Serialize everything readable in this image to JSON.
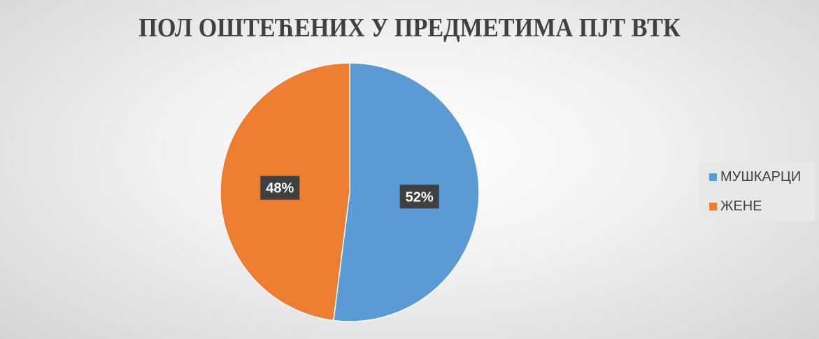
{
  "chart_data": {
    "type": "pie",
    "title": "ПОЛ ОШТЕЋЕНИХ У ПРЕДМЕТИМА ПЈТ ВТК",
    "categories": [
      "МУШКАРЦИ",
      "ЖЕНЕ"
    ],
    "values": [
      52,
      48
    ],
    "data_labels": [
      "52%",
      "48%"
    ],
    "colors": [
      "#5b9bd5",
      "#ed7d31"
    ],
    "legend_placement": "right"
  }
}
